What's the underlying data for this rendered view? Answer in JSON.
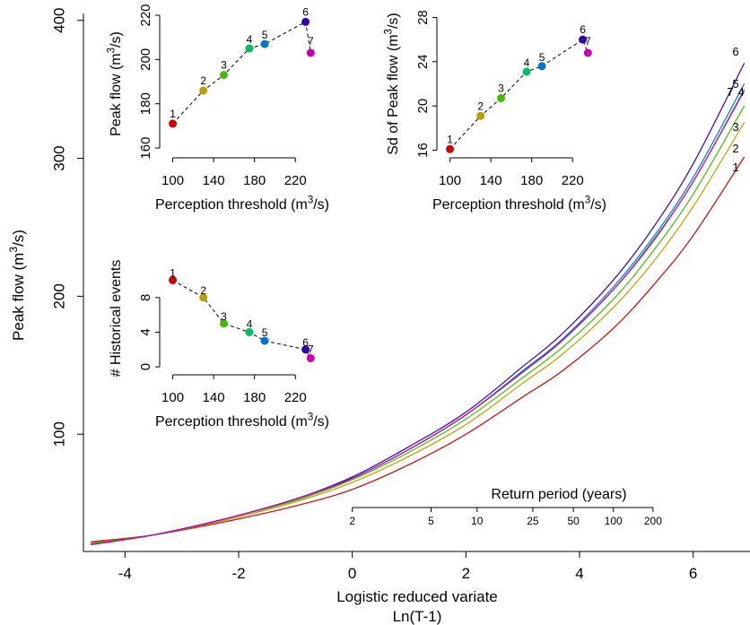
{
  "chart_data": [
    {
      "id": "main",
      "type": "line",
      "xlabel": "Logistic reduced variate",
      "xlabel2": "Ln(T-1)",
      "ylabel": "Peak flow (m³/s)",
      "xlim": [
        -4.7,
        7.0
      ],
      "ylim": [
        15,
        405
      ],
      "xticks": [
        -4,
        -2,
        0,
        2,
        4,
        6
      ],
      "yticks": [
        100,
        200,
        300,
        400
      ],
      "x": [
        -4.6,
        -3.5,
        -2.3,
        -1.0,
        0.0,
        1.0,
        2.0,
        3.0,
        3.7,
        4.6,
        5.3,
        6.0,
        6.9
      ],
      "series": [
        {
          "name": "1",
          "color": "#cc0000",
          "values": [
            22,
            27,
            36,
            48,
            60,
            78,
            100,
            127,
            146,
            177,
            208,
            244,
            301
          ]
        },
        {
          "name": "2",
          "color": "#b8a000",
          "values": [
            21,
            27,
            37,
            51,
            65,
            84,
            107,
            137,
            158,
            192,
            225,
            265,
            326
          ]
        },
        {
          "name": "3",
          "color": "#44bb00",
          "values": [
            21,
            27,
            38,
            52,
            67,
            87,
            111,
            141,
            163,
            198,
            233,
            274,
            338
          ]
        },
        {
          "name": "4",
          "color": "#00bb66",
          "values": [
            20,
            27,
            38,
            53,
            68,
            89,
            114,
            145,
            168,
            205,
            241,
            283,
            350
          ]
        },
        {
          "name": "5",
          "color": "#0077cc",
          "values": [
            20,
            27,
            38,
            53,
            68,
            89,
            114,
            146,
            169,
            207,
            243,
            286,
            354
          ]
        },
        {
          "name": "6",
          "color": "#3300aa",
          "values": [
            20,
            27,
            38,
            53,
            69,
            91,
            116,
            149,
            173,
            212,
            250,
            296,
            369
          ]
        },
        {
          "name": "7",
          "color": "#cc00aa",
          "values": [
            20,
            27,
            38,
            53,
            68,
            89,
            114,
            145,
            168,
            205,
            240,
            283,
            349
          ]
        }
      ],
      "return_period": {
        "title": "Return period (years)",
        "ticks": [
          {
            "label": "2",
            "x": 0
          },
          {
            "label": "5",
            "x": 1.386
          },
          {
            "label": "10",
            "x": 2.197
          },
          {
            "label": "25",
            "x": 3.178
          },
          {
            "label": "50",
            "x": 3.892
          },
          {
            "label": "100",
            "x": 4.595
          },
          {
            "label": "200",
            "x": 5.293
          }
        ]
      }
    },
    {
      "id": "inset-peak",
      "type": "scatter",
      "xlabel": "Perception threshold (m³/s)",
      "ylabel": "Peak flow (m³/s)",
      "xlim": [
        96,
        240
      ],
      "ylim": [
        158,
        220
      ],
      "xticks": [
        100,
        140,
        180,
        220
      ],
      "yticks": [
        160,
        180,
        200,
        220
      ],
      "points": [
        {
          "label": "1",
          "x": 100,
          "y": 171,
          "color": "#cc0000"
        },
        {
          "label": "2",
          "x": 130,
          "y": 186,
          "color": "#b8a000"
        },
        {
          "label": "3",
          "x": 150,
          "y": 193,
          "color": "#44bb00"
        },
        {
          "label": "4",
          "x": 175,
          "y": 205,
          "color": "#00bb66"
        },
        {
          "label": "5",
          "x": 190,
          "y": 207,
          "color": "#0077cc"
        },
        {
          "label": "6",
          "x": 230,
          "y": 217,
          "color": "#3300aa"
        },
        {
          "label": "7",
          "x": 235,
          "y": 203,
          "color": "#cc00aa"
        }
      ]
    },
    {
      "id": "inset-sd",
      "type": "scatter",
      "xlabel": "Perception threshold (m³/s)",
      "ylabel": "Sd of Peak flow (m³/s)",
      "xlim": [
        96,
        240
      ],
      "ylim": [
        15.8,
        28.2
      ],
      "xticks": [
        100,
        140,
        180,
        220
      ],
      "yticks": [
        16,
        20,
        24,
        28
      ],
      "points": [
        {
          "label": "1",
          "x": 100,
          "y": 16.1,
          "color": "#cc0000"
        },
        {
          "label": "2",
          "x": 130,
          "y": 19.1,
          "color": "#b8a000"
        },
        {
          "label": "3",
          "x": 150,
          "y": 20.7,
          "color": "#44bb00"
        },
        {
          "label": "4",
          "x": 175,
          "y": 23.1,
          "color": "#00bb66"
        },
        {
          "label": "5",
          "x": 190,
          "y": 23.6,
          "color": "#0077cc"
        },
        {
          "label": "6",
          "x": 230,
          "y": 26.0,
          "color": "#3300aa"
        },
        {
          "label": "7",
          "x": 235,
          "y": 24.8,
          "color": "#cc00aa"
        }
      ]
    },
    {
      "id": "inset-hist",
      "type": "scatter",
      "xlabel": "Perception threshold (m³/s)",
      "ylabel": "# Historical events",
      "xlim": [
        96,
        240
      ],
      "ylim": [
        -0.3,
        11.5
      ],
      "xticks": [
        100,
        140,
        180,
        220
      ],
      "yticks": [
        0,
        4,
        8
      ],
      "points": [
        {
          "label": "1",
          "x": 100,
          "y": 10,
          "color": "#cc0000"
        },
        {
          "label": "2",
          "x": 130,
          "y": 8,
          "color": "#b8a000"
        },
        {
          "label": "3",
          "x": 150,
          "y": 5,
          "color": "#44bb00"
        },
        {
          "label": "4",
          "x": 175,
          "y": 4,
          "color": "#00bb66"
        },
        {
          "label": "5",
          "x": 190,
          "y": 3,
          "color": "#0077cc"
        },
        {
          "label": "6",
          "x": 230,
          "y": 2,
          "color": "#3300aa"
        },
        {
          "label": "7",
          "x": 235,
          "y": 1,
          "color": "#cc00aa"
        }
      ]
    }
  ]
}
